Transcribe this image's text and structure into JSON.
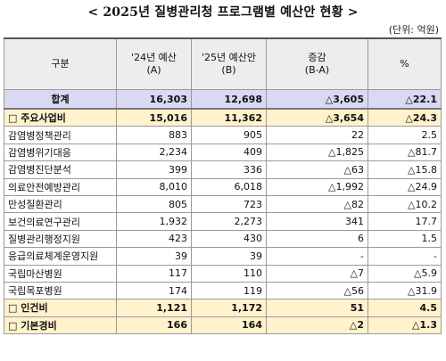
{
  "title": "< 2025년 질병관리청 프로그램별 예산안 현황 >",
  "unit": "(단위: 억원)",
  "headers": {
    "col1": "구분",
    "col2_line1": "'24년 예산",
    "col2_line2": "(A)",
    "col3_line1": "'25년 예산안",
    "col3_line2": "(B)",
    "col4_line1": "증감",
    "col4_line2": "(B-A)",
    "col5": "%"
  },
  "rows": [
    {
      "name": "합계",
      "a": "16,303",
      "b": "12,698",
      "diff": "△3,605",
      "pct": "△22.1"
    },
    {
      "name": "□ 주요사업비",
      "a": "15,016",
      "b": "11,362",
      "diff": "△3,654",
      "pct": "△24.3"
    },
    {
      "name": "감염병정책관리",
      "a": "883",
      "b": "905",
      "diff": "22",
      "pct": "2.5"
    },
    {
      "name": "감염병위기대응",
      "a": "2,234",
      "b": "409",
      "diff": "△1,825",
      "pct": "△81.7"
    },
    {
      "name": "감염병진단분석",
      "a": "399",
      "b": "336",
      "diff": "△63",
      "pct": "△15.8"
    },
    {
      "name": "의료안전예방관리",
      "a": "8,010",
      "b": "6,018",
      "diff": "△1,992",
      "pct": "△24.9"
    },
    {
      "name": "만성질환관리",
      "a": "805",
      "b": "723",
      "diff": "△82",
      "pct": "△10.2"
    },
    {
      "name": "보건의료연구관리",
      "a": "1,932",
      "b": "2,273",
      "diff": "341",
      "pct": "17.7"
    },
    {
      "name": "질병관리행정지원",
      "a": "423",
      "b": "430",
      "diff": "6",
      "pct": "1.5"
    },
    {
      "name": "응급의료체계운영지원",
      "a": "39",
      "b": "39",
      "diff": "-",
      "pct": "-"
    },
    {
      "name": "국립마산병원",
      "a": "117",
      "b": "110",
      "diff": "△7",
      "pct": "△5.9"
    },
    {
      "name": "국립목포병원",
      "a": "174",
      "b": "119",
      "diff": "△56",
      "pct": "△31.9"
    },
    {
      "name": "□ 인건비",
      "a": "1,121",
      "b": "1,172",
      "diff": "51",
      "pct": "4.5"
    },
    {
      "name": "□ 기본경비",
      "a": "166",
      "b": "164",
      "diff": "△2",
      "pct": "△1.3"
    }
  ]
}
